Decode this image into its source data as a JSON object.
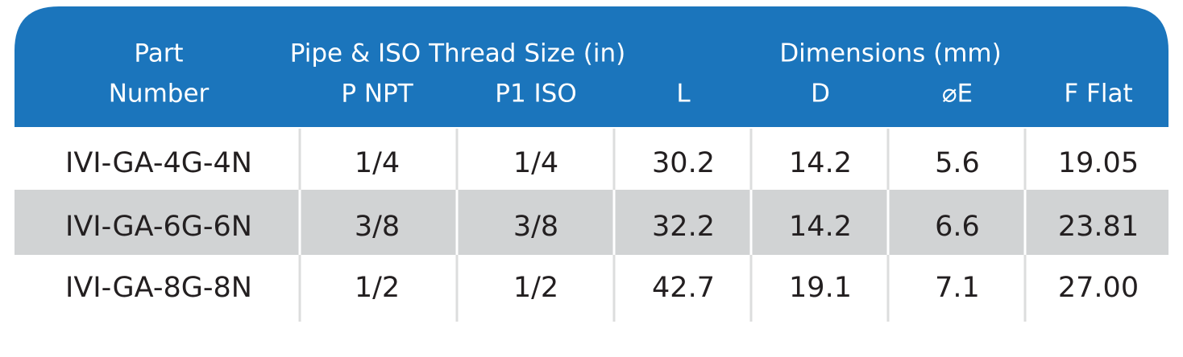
{
  "table": {
    "header": {
      "groups": [
        "Part",
        "Pipe & ISO Thread Size (in)",
        "Dimensions (mm)"
      ],
      "columns": [
        "Number",
        "P NPT",
        "P1 ISO",
        "L",
        "D",
        "⌀E",
        "F Flat"
      ]
    },
    "rows": [
      [
        "IVI-GA-4G-4N",
        "1/4",
        "1/4",
        "30.2",
        "14.2",
        "5.6",
        "19.05"
      ],
      [
        "IVI-GA-6G-6N",
        "3/8",
        "3/8",
        "32.2",
        "14.2",
        "6.6",
        "23.81"
      ],
      [
        "IVI-GA-8G-8N",
        "1/2",
        "1/2",
        "42.7",
        "19.1",
        "7.1",
        "27.00"
      ]
    ]
  }
}
